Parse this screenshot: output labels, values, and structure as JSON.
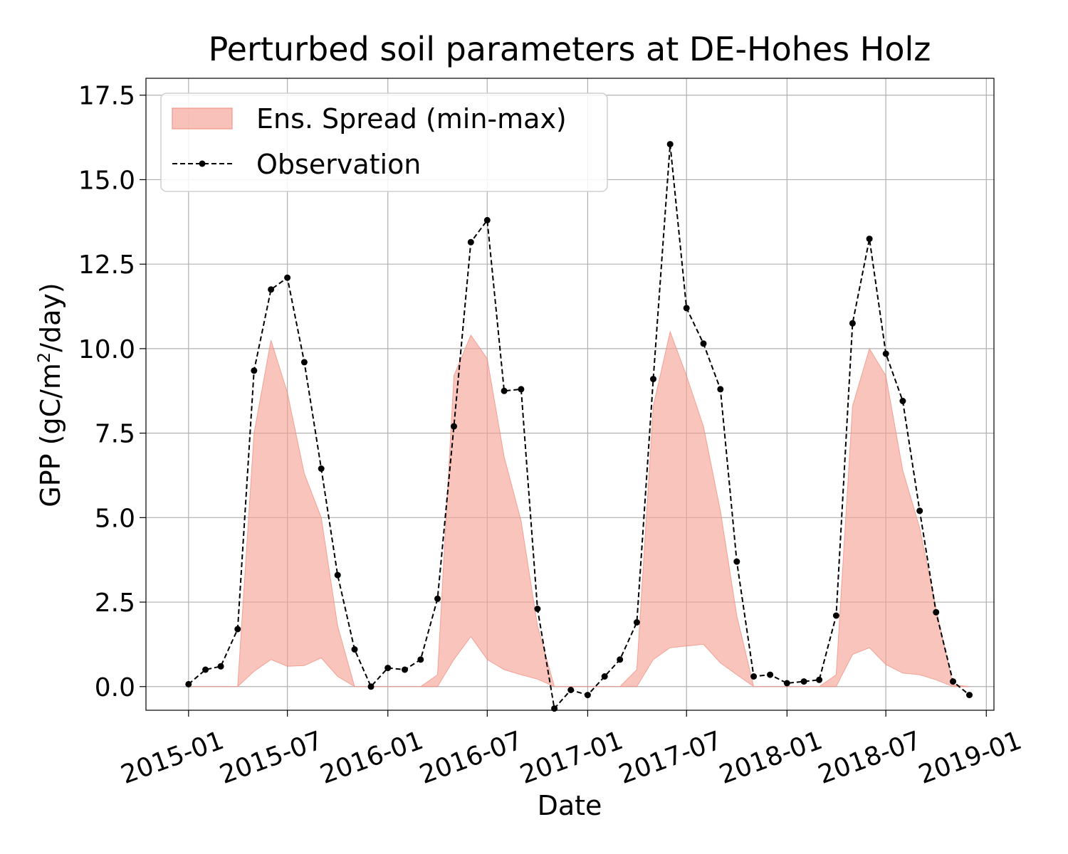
{
  "chart_data": {
    "type": "area",
    "title": "Perturbed soil parameters at DE-Hohes Holz",
    "xlabel": "Date",
    "ylabel": "GPP  (gC/m²/day)",
    "ylabel_prefix": "GPP  (gC/m",
    "ylabel_sup": "2",
    "ylabel_suffix": "/day)",
    "xlim": [
      "2014-10-15",
      "2019-01-15"
    ],
    "ylim": [
      -0.7,
      18.0
    ],
    "yticks": [
      0.0,
      2.5,
      5.0,
      7.5,
      10.0,
      12.5,
      15.0,
      17.5
    ],
    "ytick_labels": [
      "0.0",
      "2.5",
      "5.0",
      "7.5",
      "10.0",
      "12.5",
      "15.0",
      "17.5"
    ],
    "xticks": [
      "2015-01-01",
      "2015-07-01",
      "2016-01-01",
      "2016-07-01",
      "2017-01-01",
      "2017-07-01",
      "2018-01-01",
      "2018-07-01",
      "2019-01-01"
    ],
    "xtick_labels": [
      "2015-01",
      "2015-07",
      "2016-01",
      "2016-07",
      "2017-01",
      "2017-07",
      "2018-01",
      "2018-07",
      "2019-01"
    ],
    "grid": true,
    "legend_position": "top-left",
    "colors": {
      "spread_fill": "#f4a093",
      "spread_edge": "#f08878",
      "observation": "#000000"
    },
    "series": [
      {
        "name": "Ens. Spread (min-max)",
        "type": "fill_between",
        "x": [
          "2015-01-01",
          "2015-02-01",
          "2015-03-01",
          "2015-04-01",
          "2015-05-01",
          "2015-06-01",
          "2015-07-01",
          "2015-08-01",
          "2015-09-01",
          "2015-10-01",
          "2015-11-01",
          "2015-12-01",
          "2016-01-01",
          "2016-02-01",
          "2016-03-01",
          "2016-04-01",
          "2016-05-01",
          "2016-06-01",
          "2016-07-01",
          "2016-08-01",
          "2016-09-01",
          "2016-10-01",
          "2016-11-01",
          "2016-12-01",
          "2017-01-01",
          "2017-02-01",
          "2017-03-01",
          "2017-04-01",
          "2017-05-01",
          "2017-06-01",
          "2017-07-01",
          "2017-08-01",
          "2017-09-01",
          "2017-10-01",
          "2017-11-01",
          "2017-12-01",
          "2018-01-01",
          "2018-02-01",
          "2018-03-01",
          "2018-04-01",
          "2018-05-01",
          "2018-06-01",
          "2018-07-01",
          "2018-08-01",
          "2018-09-01",
          "2018-10-01",
          "2018-11-01",
          "2018-12-01"
        ],
        "min": [
          0,
          0,
          0,
          0,
          0.45,
          0.8,
          0.6,
          0.62,
          0.85,
          0.3,
          0,
          0,
          0,
          0,
          0,
          0,
          0.8,
          1.48,
          0.8,
          0.5,
          0.35,
          0.22,
          0,
          0,
          0,
          0,
          0,
          0,
          0.8,
          1.15,
          1.2,
          1.25,
          0.7,
          0.35,
          0,
          0,
          0,
          0,
          0,
          0,
          0.95,
          1.15,
          0.65,
          0.4,
          0.35,
          0.2,
          0,
          0
        ],
        "max": [
          0,
          0,
          0,
          0,
          7.5,
          10.25,
          8.7,
          6.3,
          5.0,
          1.8,
          0,
          0,
          0,
          0,
          0,
          0.35,
          9.2,
          10.4,
          9.7,
          6.8,
          4.9,
          1.8,
          0,
          0,
          0,
          0,
          0,
          0.5,
          8.3,
          10.5,
          9.2,
          7.7,
          5.2,
          2.1,
          0,
          0,
          0,
          0,
          0,
          0.35,
          8.3,
          10.0,
          9.2,
          6.4,
          4.7,
          2.3,
          0.05,
          0
        ]
      },
      {
        "name": "Observation",
        "type": "line",
        "style": "dashed-with-markers",
        "x": [
          "2015-01-01",
          "2015-02-01",
          "2015-03-01",
          "2015-04-01",
          "2015-05-01",
          "2015-06-01",
          "2015-07-01",
          "2015-08-01",
          "2015-09-01",
          "2015-10-01",
          "2015-11-01",
          "2015-12-01",
          "2016-01-01",
          "2016-02-01",
          "2016-03-01",
          "2016-04-01",
          "2016-05-01",
          "2016-06-01",
          "2016-07-01",
          "2016-08-01",
          "2016-09-01",
          "2016-10-01",
          "2016-11-01",
          "2016-12-01",
          "2017-01-01",
          "2017-02-01",
          "2017-03-01",
          "2017-04-01",
          "2017-05-01",
          "2017-06-01",
          "2017-07-01",
          "2017-08-01",
          "2017-09-01",
          "2017-10-01",
          "2017-11-01",
          "2017-12-01",
          "2018-01-01",
          "2018-02-01",
          "2018-03-01",
          "2018-04-01",
          "2018-05-01",
          "2018-06-01",
          "2018-07-01",
          "2018-08-01",
          "2018-09-01",
          "2018-10-01",
          "2018-11-01",
          "2018-12-01"
        ],
        "values": [
          0.07,
          0.5,
          0.6,
          1.7,
          9.35,
          11.75,
          12.1,
          9.6,
          6.45,
          3.3,
          1.1,
          0.0,
          0.55,
          0.5,
          0.8,
          2.6,
          7.7,
          13.15,
          13.8,
          8.75,
          8.8,
          2.3,
          -0.65,
          -0.1,
          -0.25,
          0.3,
          0.8,
          1.9,
          9.1,
          16.05,
          11.2,
          10.15,
          8.8,
          3.7,
          0.3,
          0.35,
          0.1,
          0.15,
          0.2,
          2.1,
          10.75,
          13.25,
          9.85,
          8.45,
          5.2,
          2.2,
          0.15,
          -0.25
        ]
      }
    ]
  }
}
